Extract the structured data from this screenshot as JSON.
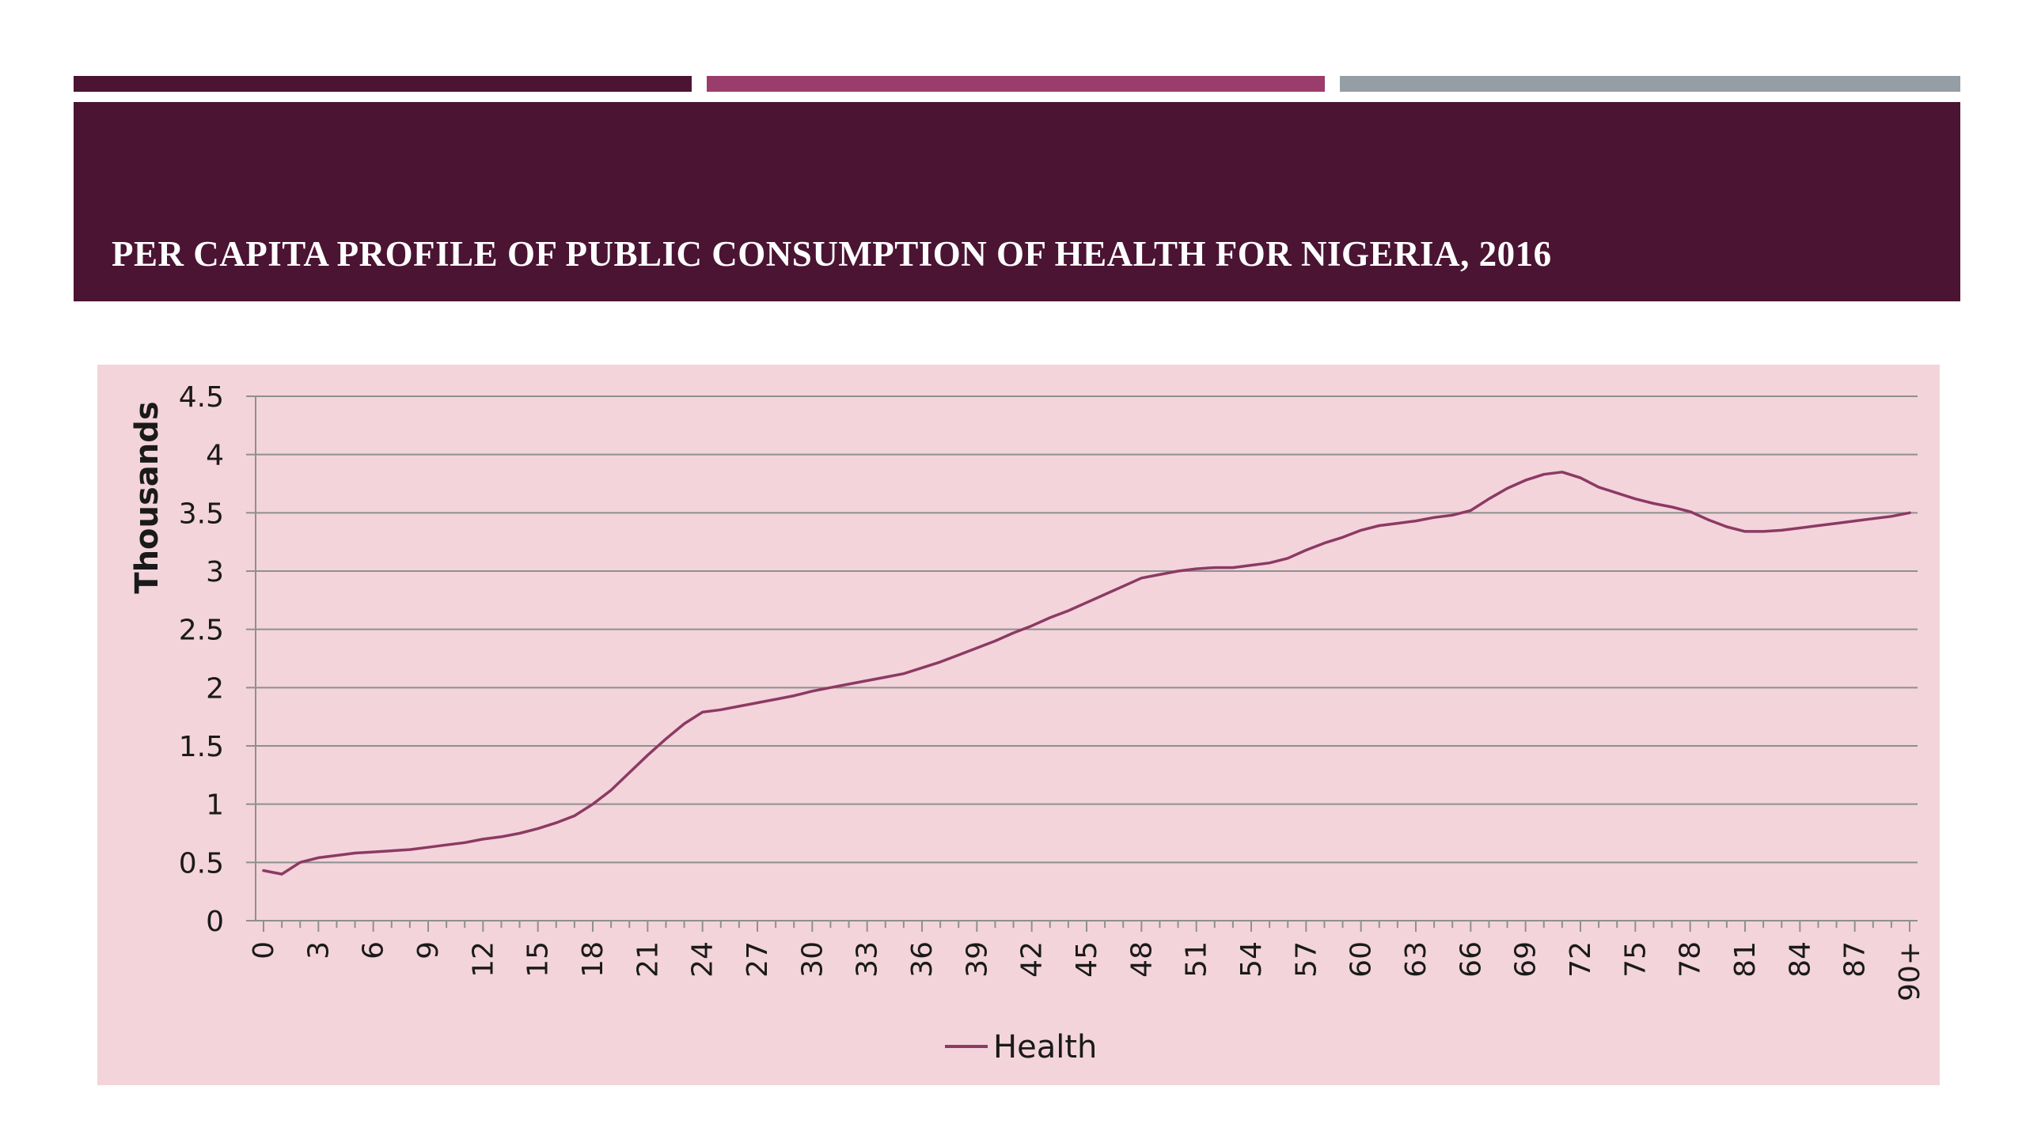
{
  "slide": {
    "title": "PER CAPITA PROFILE OF PUBLIC CONSUMPTION OF HEALTH FOR NIGERIA, 2016",
    "accent_colors": [
      "#4b1433",
      "#9b3d6c",
      "#959ea5"
    ],
    "title_band_color": "#4b1433",
    "chart_background": "#f3d4db"
  },
  "chart_data": {
    "type": "line",
    "title": "",
    "xlabel": "",
    "ylabel": "Thousands",
    "ylim": [
      0,
      4.5
    ],
    "yticks": [
      "0",
      "0.5",
      "1",
      "1.5",
      "2",
      "2.5",
      "3",
      "3.5",
      "4",
      "4.5"
    ],
    "ytick_values": [
      0,
      0.5,
      1,
      1.5,
      2,
      2.5,
      3,
      3.5,
      4,
      4.5
    ],
    "xtick_labels": [
      "0",
      "3",
      "6",
      "9",
      "12",
      "15",
      "18",
      "21",
      "24",
      "27",
      "30",
      "33",
      "36",
      "39",
      "42",
      "45",
      "48",
      "51",
      "54",
      "57",
      "60",
      "63",
      "66",
      "69",
      "72",
      "75",
      "78",
      "81",
      "84",
      "87",
      "90+"
    ],
    "grid": true,
    "legend_position": "bottom",
    "line_color": "#8c3a63",
    "series": [
      {
        "name": "Health",
        "values": [
          0.43,
          0.4,
          0.5,
          0.54,
          0.56,
          0.58,
          0.59,
          0.6,
          0.61,
          0.63,
          0.65,
          0.67,
          0.7,
          0.72,
          0.75,
          0.79,
          0.84,
          0.9,
          1.0,
          1.12,
          1.27,
          1.42,
          1.56,
          1.69,
          1.79,
          1.81,
          1.84,
          1.87,
          1.9,
          1.93,
          1.97,
          2.0,
          2.03,
          2.06,
          2.09,
          2.12,
          2.17,
          2.22,
          2.28,
          2.34,
          2.4,
          2.47,
          2.53,
          2.6,
          2.66,
          2.73,
          2.8,
          2.87,
          2.94,
          2.97,
          3.0,
          3.02,
          3.03,
          3.03,
          3.05,
          3.07,
          3.11,
          3.18,
          3.24,
          3.29,
          3.35,
          3.39,
          3.41,
          3.43,
          3.46,
          3.48,
          3.52,
          3.62,
          3.71,
          3.78,
          3.83,
          3.85,
          3.8,
          3.72,
          3.67,
          3.62,
          3.58,
          3.55,
          3.51,
          3.44,
          3.38,
          3.34,
          3.34,
          3.35,
          3.37,
          3.39,
          3.41,
          3.43,
          3.45,
          3.47,
          3.5
        ]
      }
    ]
  }
}
